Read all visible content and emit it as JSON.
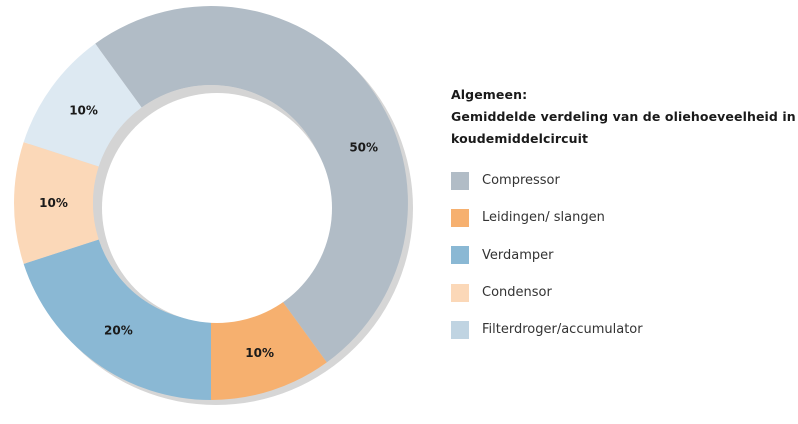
{
  "chart_data": {
    "type": "pie",
    "variant": "donut",
    "title_lines": [
      "Algemeen:",
      "Gemiddelde verdeling van de oliehoeveelheid in het",
      "koudemiddelcircuit"
    ],
    "categories": [
      "Compressor",
      "Leidingen/ slangen",
      "Verdamper",
      "Condensor",
      "Filterdroger/accumulator"
    ],
    "values": [
      50,
      10,
      20,
      10,
      10
    ],
    "data_labels": [
      "50%",
      "10%",
      "20%",
      "10%",
      "10%"
    ],
    "colors": [
      "#b1bcc6",
      "#f6b06f",
      "#8ab8d4",
      "#fbd8b8",
      "#dde9f2"
    ],
    "legend_swatch_colors": [
      "#b1bcc6",
      "#f6b06f",
      "#8ab8d4",
      "#fbd8b8",
      "#c0d4e2"
    ],
    "legend_placement": "right"
  }
}
